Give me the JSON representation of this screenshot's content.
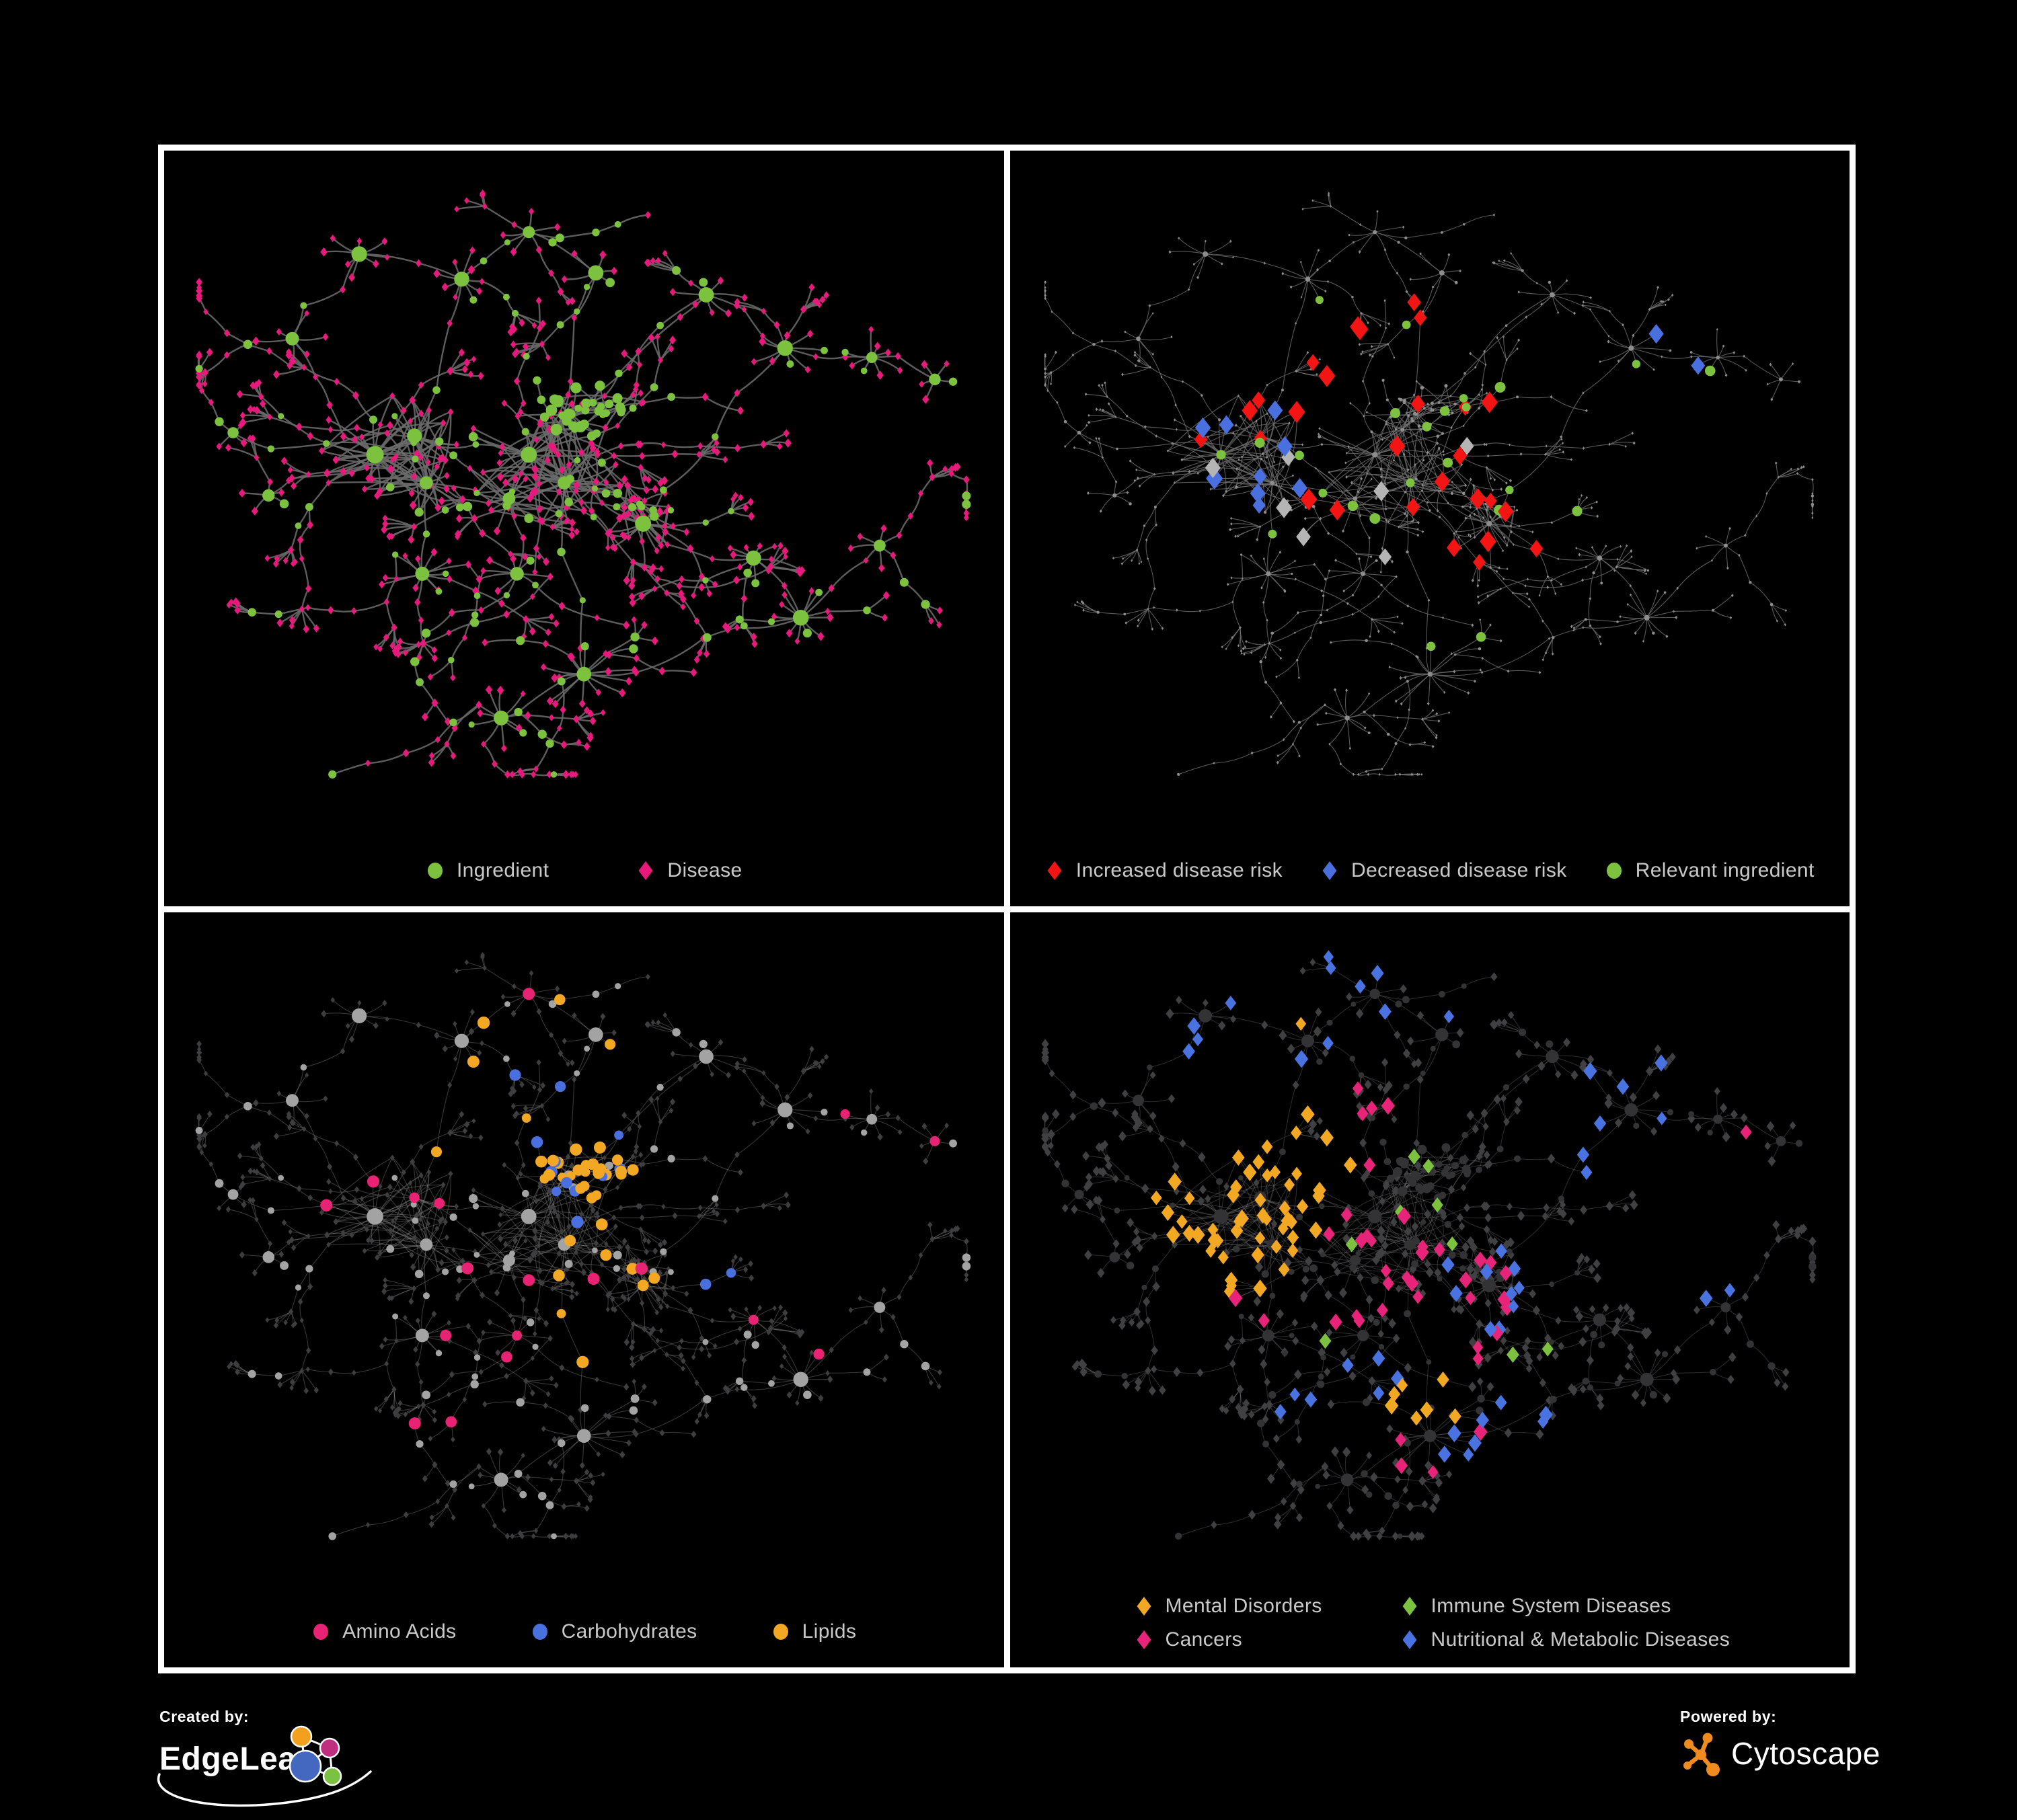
{
  "figure": {
    "background": "#000000",
    "frame_color": "#ffffff",
    "panel_background": "#000000",
    "legend_text_color": "#c9c9c9"
  },
  "panels": [
    {
      "name": "ingredient-disease",
      "legend": {
        "layout": "row",
        "items": [
          {
            "label": "Ingredient",
            "shape": "circle",
            "color": "#7cc23e"
          },
          {
            "label": "Disease",
            "shape": "diamond",
            "color": "#e8197d"
          }
        ]
      },
      "network": {
        "edge": {
          "color": "#6a6a6a",
          "width": 2.4,
          "opacity": 0.88
        },
        "circle": {
          "color": "#7cc23e",
          "scale": 1.0
        },
        "diamond": {
          "color": "#e8197d",
          "scale": 1.0
        },
        "highlights": []
      }
    },
    {
      "name": "disease-risk",
      "legend": {
        "layout": "row",
        "items": [
          {
            "label": "Increased disease risk",
            "shape": "diamond",
            "color": "#f31414"
          },
          {
            "label": "Decreased disease risk",
            "shape": "diamond",
            "color": "#4a6fde"
          },
          {
            "label": "Relevant ingredient",
            "shape": "circle",
            "color": "#7cc23e"
          }
        ]
      },
      "network": {
        "edge": {
          "color": "#6f6f6f",
          "width": 1.1,
          "opacity": 0.8
        },
        "circle": {
          "color": "#8d8d8d",
          "scale": 0.34
        },
        "diamond": {
          "color": "#8d8d8d",
          "scale": 0.38
        },
        "highlights": [
          {
            "name": "increased-disease-risk",
            "color": "#f31414",
            "shape": "diamond",
            "pick": "diamond",
            "size": 11,
            "count": 28,
            "regions": [
              [
                0.45,
                0.47,
                0.13
              ],
              [
                0.27,
                0.45,
                0.1
              ],
              [
                0.58,
                0.57,
                0.09
              ],
              [
                0.5,
                0.3,
                0.16
              ],
              [
                0.75,
                0.76,
                0.07
              ],
              [
                0.38,
                0.2,
                0.06
              ]
            ]
          },
          {
            "name": "decreased-disease-risk",
            "color": "#4a6fde",
            "shape": "diamond",
            "pick": "diamond",
            "size": 11,
            "count": 9,
            "regions": [
              [
                0.28,
                0.47,
                0.09
              ]
            ]
          },
          {
            "name": "decreased-disease-risk-far-right",
            "color": "#4a6fde",
            "shape": "diamond",
            "pick": "diamond",
            "size": 11,
            "count": 2,
            "regions": [
              [
                0.8,
                0.33,
                0.07
              ]
            ]
          },
          {
            "name": "neutral-disease",
            "color": "#b5b5b5",
            "shape": "diamond",
            "pick": "diamond",
            "size": 11,
            "count": 7,
            "regions": [
              [
                0.3,
                0.42,
                0.12
              ],
              [
                0.47,
                0.52,
                0.12
              ],
              [
                0.6,
                0.62,
                0.08
              ],
              [
                0.35,
                0.6,
                0.1
              ]
            ]
          },
          {
            "name": "relevant-ingredient",
            "color": "#7cc23e",
            "shape": "circle",
            "pick": "circle",
            "size": 7,
            "count": 24,
            "regions": [
              [
                0.4,
                0.45,
                0.22
              ],
              [
                0.6,
                0.57,
                0.1
              ],
              [
                0.74,
                0.3,
                0.12
              ],
              [
                0.52,
                0.68,
                0.12
              ],
              [
                0.9,
                0.4,
                0.08
              ],
              [
                0.3,
                0.25,
                0.1
              ]
            ]
          }
        ]
      }
    },
    {
      "name": "nutrient-classes",
      "legend": {
        "layout": "row",
        "items": [
          {
            "label": "Amino Acids",
            "shape": "circle",
            "color": "#e82373"
          },
          {
            "label": "Carbohydrates",
            "shape": "circle",
            "color": "#4a6fde"
          },
          {
            "label": "Lipids",
            "shape": "circle",
            "color": "#f3a823"
          }
        ]
      },
      "network": {
        "edge": {
          "color": "#999999",
          "width": 1.1,
          "opacity": 0.36
        },
        "circle": {
          "color": "#a3a3a3",
          "scale": 0.95
        },
        "diamond": {
          "color": "#3e3e40",
          "scale": 0.8
        },
        "highlights": [
          {
            "name": "lipids-cluster",
            "color": "#f3a823",
            "shape": "circle",
            "pick": "circle",
            "size": 8,
            "count": 26,
            "regions": [
              [
                0.505,
                0.39,
                0.075
              ]
            ]
          },
          {
            "name": "lipids-scattered",
            "color": "#f3a823",
            "shape": "circle",
            "pick": "circle",
            "size": 8,
            "count": 16,
            "regions": [
              [
                0.45,
                0.25,
                0.18
              ],
              [
                0.57,
                0.55,
                0.12
              ],
              [
                0.48,
                0.62,
                0.14
              ],
              [
                0.7,
                0.52,
                0.12
              ]
            ]
          },
          {
            "name": "carbohydrates",
            "color": "#4a6fde",
            "shape": "circle",
            "pick": "circle",
            "size": 8,
            "count": 9,
            "regions": [
              [
                0.505,
                0.39,
                0.08
              ]
            ]
          },
          {
            "name": "carbohydrates-scattered",
            "color": "#4a6fde",
            "shape": "circle",
            "pick": "circle",
            "size": 8,
            "count": 5,
            "regions": [
              [
                0.3,
                0.08,
                0.1
              ],
              [
                0.05,
                0.25,
                0.06
              ],
              [
                0.42,
                0.3,
                0.08
              ],
              [
                0.68,
                0.56,
                0.07
              ]
            ]
          },
          {
            "name": "amino-acids",
            "color": "#e82373",
            "shape": "circle",
            "pick": "circle",
            "size": 8,
            "count": 18,
            "regions": [
              [
                0.28,
                0.2,
                0.12
              ],
              [
                0.25,
                0.5,
                0.14
              ],
              [
                0.3,
                0.7,
                0.15
              ],
              [
                0.5,
                0.6,
                0.1
              ],
              [
                0.72,
                0.65,
                0.12
              ],
              [
                0.85,
                0.28,
                0.12
              ],
              [
                0.45,
                0.05,
                0.1
              ]
            ]
          }
        ]
      }
    },
    {
      "name": "disease-classes",
      "legend": {
        "layout": "grid-2col",
        "items": [
          {
            "label": "Mental Disorders",
            "shape": "diamond",
            "color": "#f3a823"
          },
          {
            "label": "Immune System Diseases",
            "shape": "diamond",
            "color": "#7cc23e"
          },
          {
            "label": "Cancers",
            "shape": "diamond",
            "color": "#e8237a"
          },
          {
            "label": "Nutritional & Metabolic Diseases",
            "shape": "diamond",
            "color": "#4a73e2"
          }
        ]
      },
      "network": {
        "edge": {
          "color": "#8f8f8f",
          "width": 1.0,
          "opacity": 0.32
        },
        "circle": {
          "color": "#333336",
          "scale": 0.85
        },
        "diamond": {
          "color": "#404043",
          "scale": 1.15
        },
        "highlights": [
          {
            "name": "mental-disorders",
            "color": "#f3a823",
            "shape": "diamond",
            "pick": "diamond",
            "size": 9,
            "count": 60,
            "regions": [
              [
                0.245,
                0.47,
                0.115
              ],
              [
                0.33,
                0.35,
                0.08
              ],
              [
                0.33,
                0.14,
                0.04
              ],
              [
                0.5,
                0.75,
                0.05
              ]
            ]
          },
          {
            "name": "cancers",
            "color": "#e8237a",
            "shape": "diamond",
            "pick": "diamond",
            "size": 9,
            "count": 40,
            "regions": [
              [
                0.45,
                0.52,
                0.13
              ],
              [
                0.52,
                0.6,
                0.1
              ],
              [
                0.4,
                0.35,
                0.1
              ],
              [
                0.5,
                0.8,
                0.07
              ],
              [
                0.88,
                0.28,
                0.06
              ],
              [
                0.25,
                0.65,
                0.07
              ]
            ]
          },
          {
            "name": "nutritional-metabolic-diseases",
            "color": "#4a73e2",
            "shape": "diamond",
            "pick": "diamond",
            "size": 9,
            "count": 46,
            "regions": [
              [
                0.57,
                0.57,
                0.07
              ],
              [
                0.75,
                0.3,
                0.1
              ],
              [
                0.85,
                0.4,
                0.07
              ],
              [
                0.17,
                0.12,
                0.1
              ],
              [
                0.48,
                0.08,
                0.12
              ],
              [
                0.3,
                0.2,
                0.1
              ],
              [
                0.38,
                0.72,
                0.09
              ],
              [
                0.6,
                0.8,
                0.09
              ],
              [
                0.9,
                0.55,
                0.08
              ]
            ]
          },
          {
            "name": "immune-system-diseases",
            "color": "#7cc23e",
            "shape": "diamond",
            "pick": "diamond",
            "size": 9,
            "count": 9,
            "regions": [
              [
                0.42,
                0.45,
                0.14
              ],
              [
                0.35,
                0.6,
                0.09
              ],
              [
                0.55,
                0.35,
                0.09
              ],
              [
                0.68,
                0.7,
                0.08
              ]
            ]
          }
        ]
      }
    }
  ],
  "footer": {
    "created_by": "Created by:",
    "brand": "EdgeLeap",
    "powered_by": "Powered by:",
    "engine": "Cytoscape",
    "edgeleap_logo_colors": {
      "orange": "#f3a01e",
      "pink": "#c22e7f",
      "blue": "#4467c0",
      "green": "#7cc242",
      "lines": "#ffffff"
    },
    "cytoscape_logo_color": "#ef8b1f"
  }
}
